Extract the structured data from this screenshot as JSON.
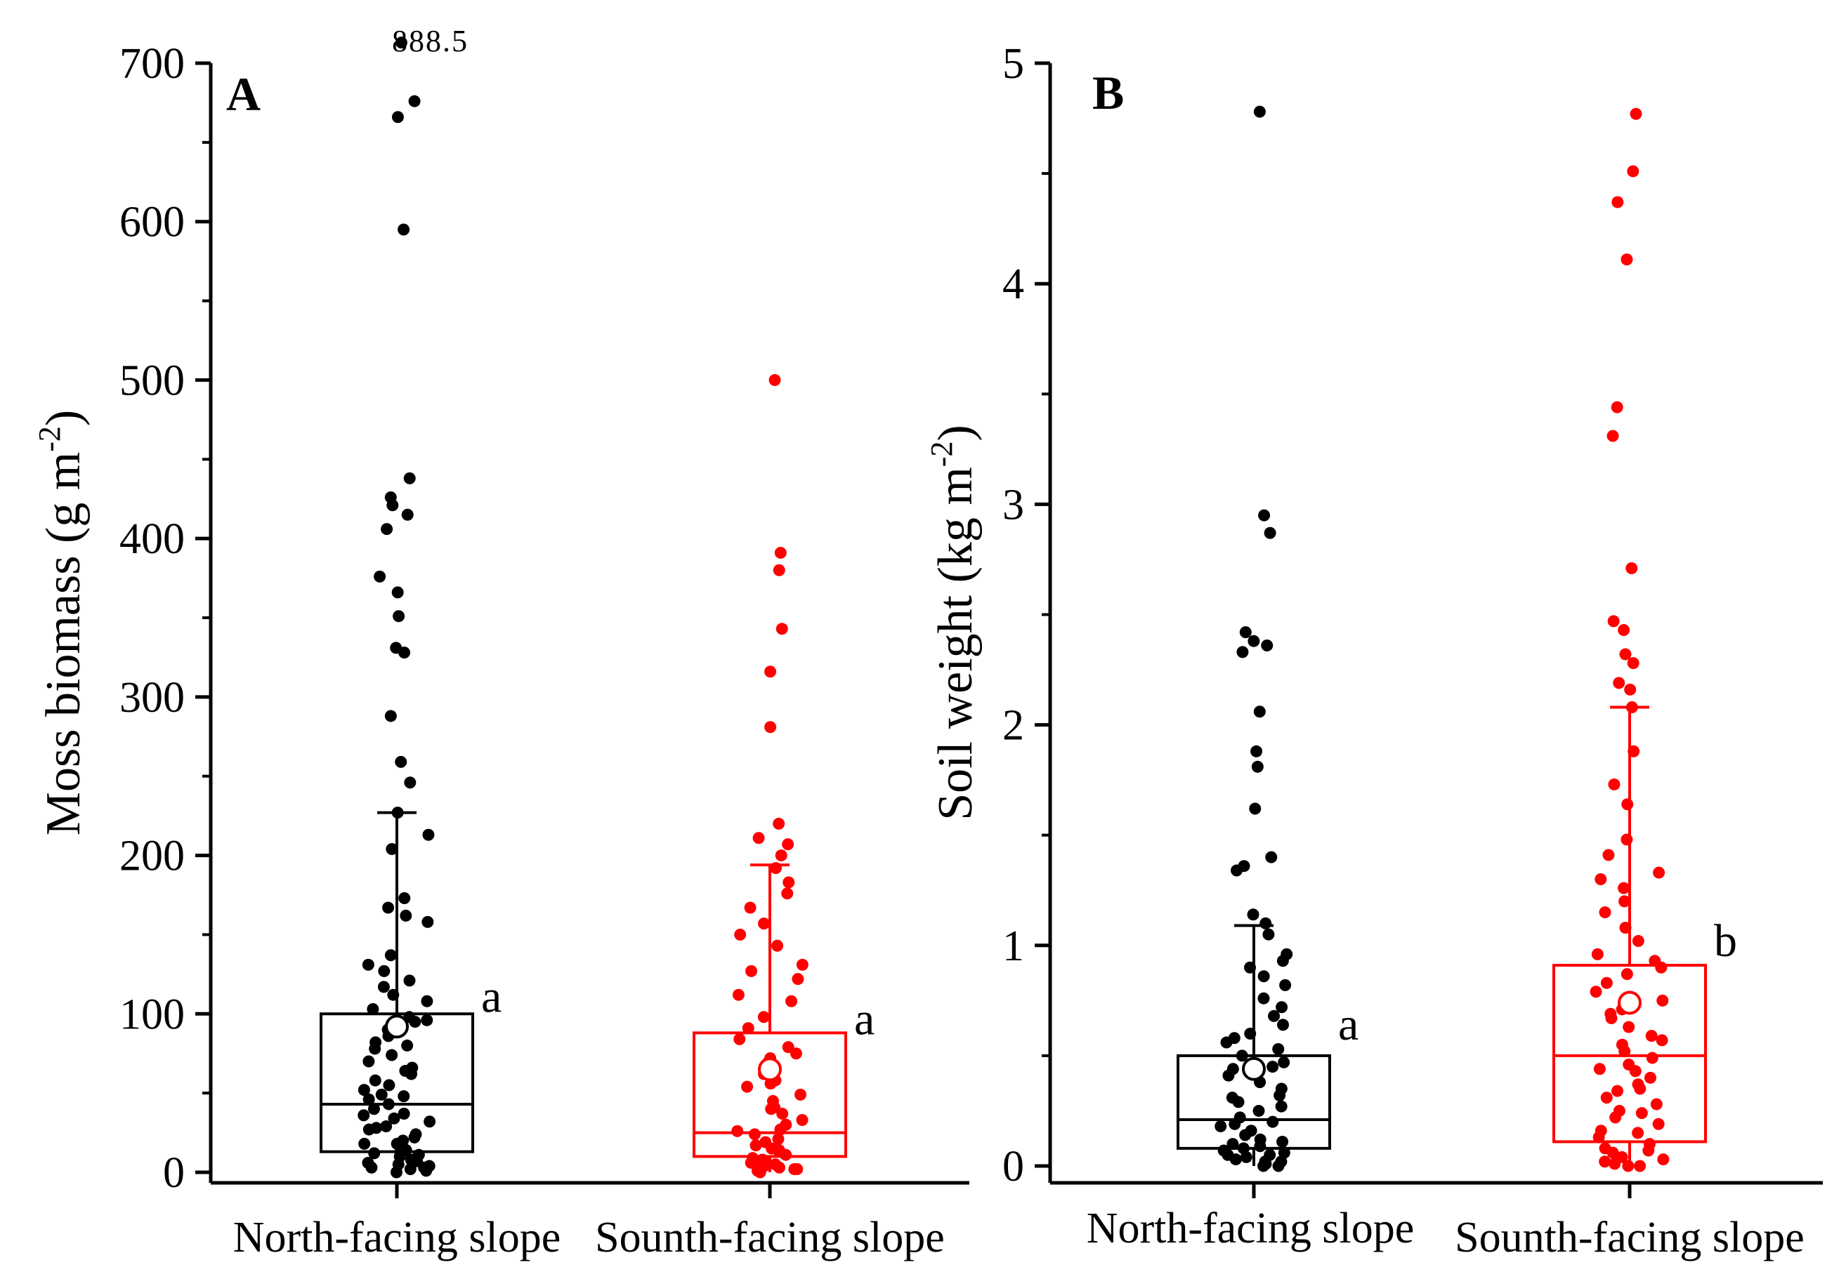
{
  "chart_data": [
    {
      "type": "box",
      "panel": "A",
      "ylabel": "Moss biomass (g m-2)",
      "ylabel_parts": {
        "main": "Moss biomass (g m",
        "sup": "-2",
        "close": ")"
      },
      "ylim": [
        0,
        700
      ],
      "yticks": [
        0,
        100,
        200,
        300,
        400,
        500,
        600,
        700
      ],
      "ytick_labels": [
        "0",
        "100",
        "200",
        "300",
        "400",
        "500",
        "600",
        "700"
      ],
      "categories": [
        "North-facing slope",
        "Sounth-facing slope"
      ],
      "outlier_note": "888.5",
      "groups": [
        {
          "name": "North-facing slope",
          "color": "#000000",
          "q1": 13,
          "median": 43,
          "q3": 100,
          "whisker_low": 0,
          "whisker_high": 227,
          "mean": 92,
          "letter": "a",
          "points": [
            713,
            676,
            666,
            595,
            438,
            426,
            421,
            415,
            406,
            376,
            366,
            351,
            331,
            328,
            288,
            259,
            246,
            227,
            213,
            204,
            173,
            167,
            162,
            158,
            137,
            131,
            127,
            121,
            117,
            112,
            108,
            103,
            98,
            95,
            90,
            86,
            82,
            78,
            74,
            70,
            66,
            62,
            58,
            55,
            52,
            49,
            46,
            43,
            40,
            37,
            34,
            32,
            29,
            27,
            24,
            22,
            20,
            18,
            16,
            14,
            12,
            10,
            8,
            7,
            6,
            5,
            4,
            3,
            2,
            1,
            0,
            96,
            80,
            64,
            48,
            36,
            28,
            18,
            11,
            3
          ]
        },
        {
          "name": "Sounth-facing slope",
          "color": "#ff0000",
          "q1": 10,
          "median": 25,
          "q3": 88,
          "whisker_low": 0,
          "whisker_high": 194,
          "mean": 65,
          "letter": "a",
          "points": [
            500,
            391,
            380,
            343,
            316,
            281,
            220,
            211,
            207,
            200,
            192,
            183,
            176,
            167,
            157,
            150,
            143,
            131,
            127,
            122,
            112,
            108,
            98,
            91,
            84,
            79,
            75,
            69,
            62,
            58,
            54,
            49,
            45,
            41,
            37,
            33,
            30,
            27,
            24,
            21,
            19,
            17,
            15,
            13,
            11,
            9,
            8,
            7,
            6,
            5,
            4,
            3,
            2,
            1,
            0,
            72,
            56,
            40,
            26,
            14,
            6,
            2
          ]
        }
      ]
    },
    {
      "type": "box",
      "panel": "B",
      "ylabel": "Soil weight (kg m-2)",
      "ylabel_parts": {
        "main": "Soil weight (kg m",
        "sup": "-2",
        "close": ")"
      },
      "ylim": [
        0,
        5
      ],
      "yticks": [
        0,
        1,
        2,
        3,
        4,
        5
      ],
      "ytick_labels": [
        "0",
        "1",
        "2",
        "3",
        "4",
        "5"
      ],
      "categories": [
        "North-facing slope",
        "Sounth-facing slope"
      ],
      "groups": [
        {
          "name": "North-facing slope",
          "color": "#000000",
          "q1": 0.08,
          "median": 0.21,
          "q3": 0.5,
          "whisker_low": 0,
          "whisker_high": 1.09,
          "mean": 0.44,
          "letter": "a",
          "points": [
            4.78,
            2.95,
            2.87,
            2.42,
            2.38,
            2.36,
            2.33,
            2.06,
            1.88,
            1.81,
            1.62,
            1.4,
            1.36,
            1.34,
            1.14,
            1.1,
            1.05,
            0.96,
            0.93,
            0.9,
            0.86,
            0.82,
            0.76,
            0.72,
            0.68,
            0.64,
            0.6,
            0.56,
            0.53,
            0.5,
            0.47,
            0.44,
            0.41,
            0.38,
            0.35,
            0.32,
            0.29,
            0.27,
            0.25,
            0.22,
            0.2,
            0.18,
            0.16,
            0.14,
            0.12,
            0.1,
            0.09,
            0.08,
            0.07,
            0.06,
            0.05,
            0.04,
            0.03,
            0.02,
            0.01,
            0.0,
            0.58,
            0.45,
            0.31,
            0.19,
            0.11,
            0.05,
            0.02,
            0.0
          ]
        },
        {
          "name": "Sounth-facing slope",
          "color": "#ff0000",
          "q1": 0.11,
          "median": 0.5,
          "q3": 0.91,
          "whisker_low": 0,
          "whisker_high": 2.08,
          "mean": 0.74,
          "letter": "b",
          "points": [
            4.77,
            4.51,
            4.37,
            4.11,
            3.44,
            3.31,
            2.71,
            2.47,
            2.43,
            2.32,
            2.28,
            2.19,
            2.16,
            2.08,
            1.88,
            1.73,
            1.64,
            1.48,
            1.41,
            1.33,
            1.3,
            1.26,
            1.2,
            1.15,
            1.08,
            1.02,
            0.96,
            0.93,
            0.9,
            0.87,
            0.83,
            0.79,
            0.75,
            0.71,
            0.67,
            0.63,
            0.59,
            0.55,
            0.52,
            0.49,
            0.46,
            0.43,
            0.4,
            0.37,
            0.34,
            0.31,
            0.28,
            0.25,
            0.22,
            0.19,
            0.16,
            0.13,
            0.1,
            0.08,
            0.06,
            0.04,
            0.02,
            0.01,
            0.0,
            0.69,
            0.57,
            0.44,
            0.35,
            0.24,
            0.15,
            0.07,
            0.03,
            0.0
          ]
        }
      ]
    }
  ]
}
